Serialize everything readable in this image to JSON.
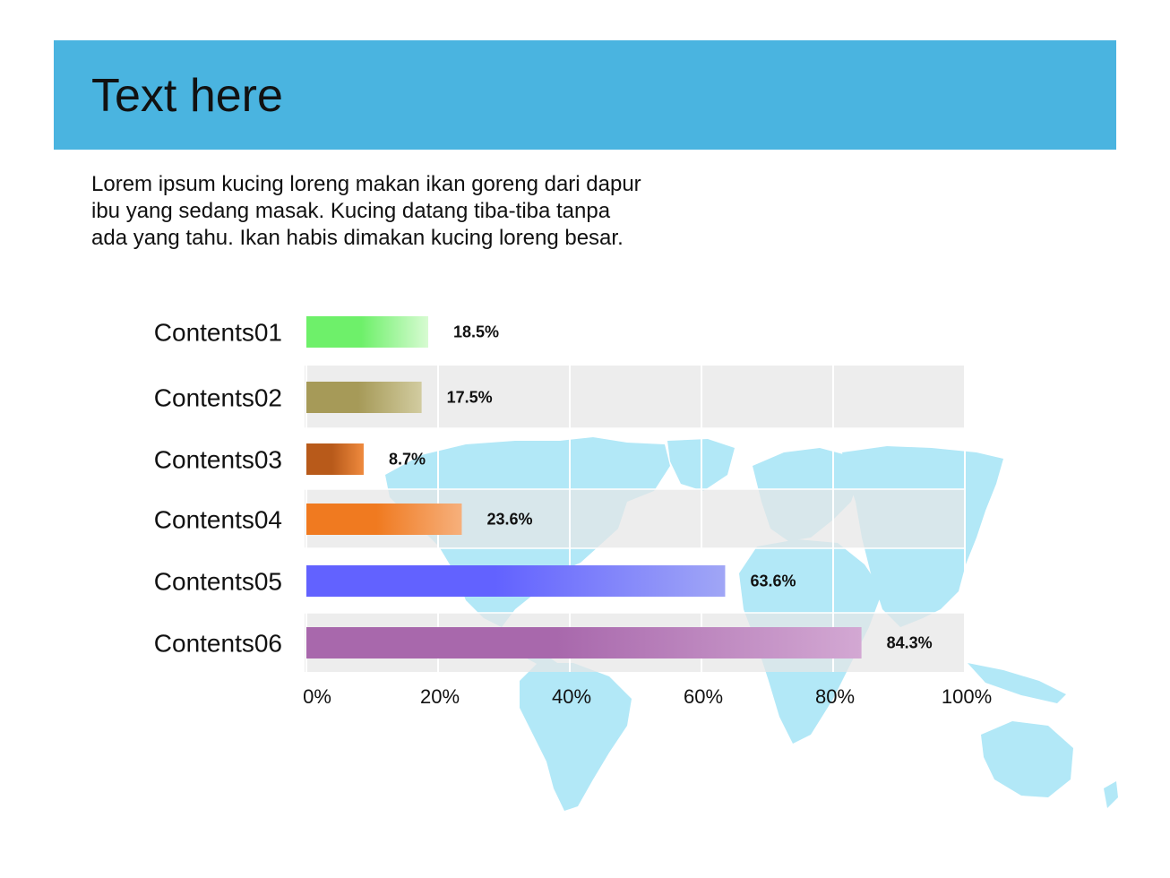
{
  "header": {
    "title": "Text here",
    "color": "#4ab4e0"
  },
  "intro": {
    "lines": [
      "Lorem ipsum kucing loreng makan ikan goreng dari dapur",
      "ibu yang sedang masak. Kucing datang tiba-tiba tanpa",
      "ada yang tahu. Ikan habis dimakan kucing loreng besar."
    ]
  },
  "background": {
    "icon": "world-map-icon",
    "color": "#b2e8f7"
  },
  "chart_data": {
    "type": "bar",
    "orientation": "horizontal",
    "title": "",
    "xlabel": "",
    "ylabel": "",
    "xlim": [
      0,
      100
    ],
    "grid": true,
    "categories": [
      "Contents01",
      "Contents02",
      "Contents03",
      "Contents04",
      "Contents05",
      "Contents06"
    ],
    "values": [
      18.5,
      17.5,
      8.7,
      23.6,
      63.6,
      84.3
    ],
    "value_labels": [
      "18.5%",
      "17.5%",
      "8.7%",
      "23.6%",
      "63.6%",
      "84.3%"
    ],
    "ticks": [
      "0%",
      "20%",
      "40%",
      "60%",
      "80%",
      "100%"
    ],
    "tick_values": [
      0,
      20,
      40,
      60,
      80,
      100
    ],
    "colors": [
      [
        "#6ef06a",
        "#d7fbd2"
      ],
      [
        "#a69a58",
        "#d2cca0"
      ],
      [
        "#b85a1a",
        "#ef8a3e"
      ],
      [
        "#f07a20",
        "#f6b07c"
      ],
      [
        "#6262ff",
        "#a0a6f6"
      ],
      [
        "#a868ac",
        "#d3a8d3"
      ]
    ]
  }
}
